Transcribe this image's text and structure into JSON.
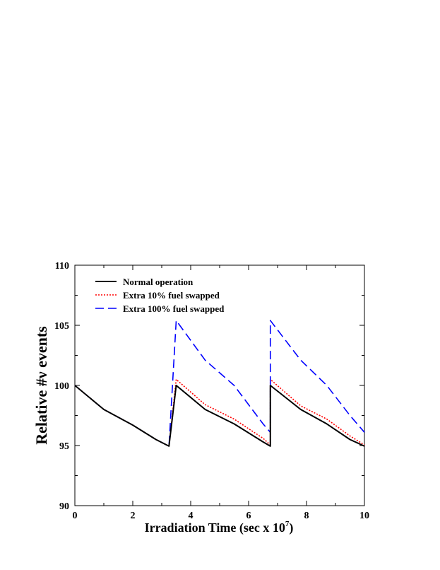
{
  "chart_data": {
    "type": "line",
    "title": "",
    "xlabel": "Irradiation Time (sec x 10",
    "xlabel_sup": "7",
    "xlabel_close": ")",
    "ylabel": "Relative #ν events",
    "xlim": [
      0,
      10
    ],
    "ylim": [
      90,
      110
    ],
    "xticks": [
      0,
      2,
      4,
      6,
      8,
      10
    ],
    "xtick_labels": [
      "0",
      "2",
      "4",
      "6",
      "8",
      "10"
    ],
    "yticks": [
      90,
      95,
      100,
      105,
      110
    ],
    "ytick_labels": [
      "90",
      "95",
      "100",
      "105",
      "110"
    ],
    "grid": false,
    "legend_position": "top-left",
    "series": [
      {
        "name": "Normal operation",
        "color": "#000000",
        "style": "solid",
        "x": [
          0,
          1.0,
          2.0,
          2.8,
          3.25,
          3.5,
          4.5,
          5.5,
          6.5,
          6.75,
          6.75,
          7.8,
          8.7,
          9.5,
          10.0
        ],
        "y": [
          100,
          98.0,
          96.7,
          95.5,
          94.95,
          100.0,
          98.0,
          96.8,
          95.3,
          94.95,
          100.0,
          98.0,
          96.8,
          95.5,
          94.95
        ]
      },
      {
        "name": "Extra 10% fuel swapped",
        "color": "#ff0000",
        "style": "dotted",
        "x": [
          0,
          1.0,
          2.0,
          2.8,
          3.25,
          3.5,
          4.5,
          5.5,
          6.5,
          6.75,
          6.75,
          7.8,
          8.7,
          9.5,
          10.0
        ],
        "y": [
          100,
          98.0,
          96.7,
          95.5,
          94.95,
          100.5,
          98.4,
          97.2,
          95.6,
          95.05,
          100.5,
          98.3,
          97.2,
          95.8,
          95.05
        ]
      },
      {
        "name": "Extra 100% fuel swapped",
        "color": "#0000ff",
        "style": "dashed",
        "x": [
          0,
          1.0,
          2.0,
          2.8,
          3.25,
          3.5,
          4.5,
          5.5,
          6.5,
          6.75,
          6.75,
          7.8,
          8.7,
          9.5,
          10.0
        ],
        "y": [
          100,
          98.0,
          96.7,
          95.5,
          94.95,
          105.4,
          102.1,
          100.0,
          96.8,
          96.1,
          105.4,
          102.1,
          100.0,
          97.5,
          96.1
        ]
      }
    ]
  }
}
